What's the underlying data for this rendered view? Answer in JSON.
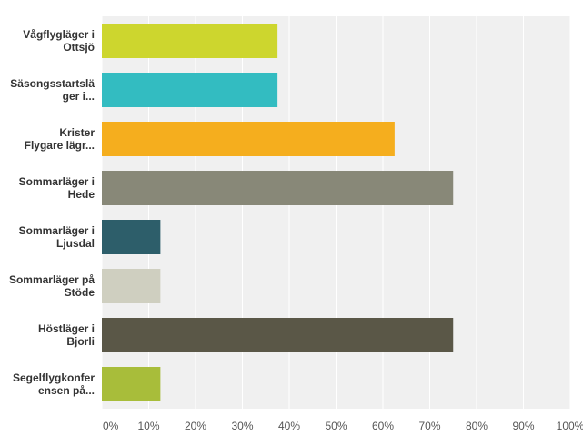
{
  "chart_data": {
    "type": "bar",
    "orientation": "horizontal",
    "categories": [
      [
        "Vågflygläger i",
        "Ottsjö"
      ],
      [
        "Säsongsstartslä",
        "ger i..."
      ],
      [
        "Krister",
        "Flygare lägr..."
      ],
      [
        "Sommarläger i",
        "Hede"
      ],
      [
        "Sommarläger i",
        "Ljusdal"
      ],
      [
        "Sommarläger på",
        "Stöde"
      ],
      [
        "Höstläger i",
        "Bjorli"
      ],
      [
        "Segelflygkonfer",
        "ensen på..."
      ]
    ],
    "values": [
      37.5,
      37.5,
      62.5,
      75,
      12.5,
      12.5,
      75,
      12.5
    ],
    "bar_colors": [
      "#cdd62e",
      "#33bcc1",
      "#f5ae1e",
      "#888878",
      "#2d5e6a",
      "#cfcfc0",
      "#5a5747",
      "#a8bd3a"
    ],
    "xlim": [
      0,
      100
    ],
    "x_ticks": [
      "0%",
      "10%",
      "20%",
      "30%",
      "40%",
      "50%",
      "60%",
      "70%",
      "80%",
      "90%",
      "100%"
    ],
    "grid": true,
    "title": "",
    "xlabel": "",
    "ylabel": ""
  }
}
